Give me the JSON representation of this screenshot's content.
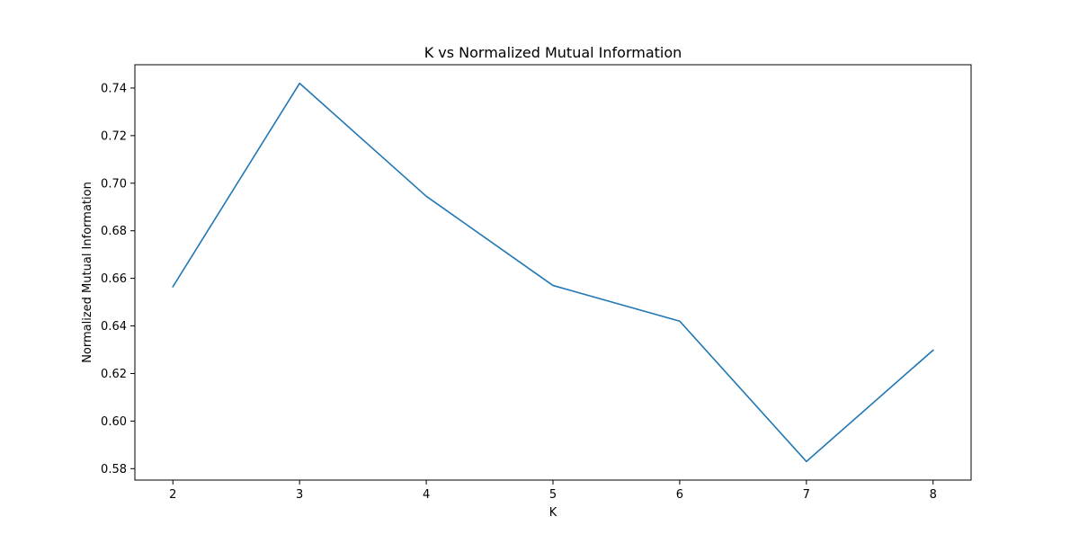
{
  "chart_data": {
    "type": "line",
    "title": "K vs Normalized Mutual Information",
    "xlabel": "K",
    "ylabel": "Normalized Mutual Information",
    "x": [
      2,
      3,
      4,
      5,
      6,
      7,
      8
    ],
    "series": [
      {
        "values": [
          0.6565,
          0.742,
          0.6945,
          0.657,
          0.642,
          0.583,
          0.6298
        ],
        "color": "#1f77b4"
      }
    ],
    "xticks": [
      "2",
      "3",
      "4",
      "5",
      "6",
      "7",
      "8"
    ],
    "yticks": [
      "0.58",
      "0.60",
      "0.62",
      "0.64",
      "0.66",
      "0.68",
      "0.70",
      "0.72",
      "0.74"
    ],
    "xlim": [
      1.7,
      8.3
    ],
    "ylim": [
      0.5752,
      0.7498
    ],
    "grid": false,
    "legend": "none"
  }
}
